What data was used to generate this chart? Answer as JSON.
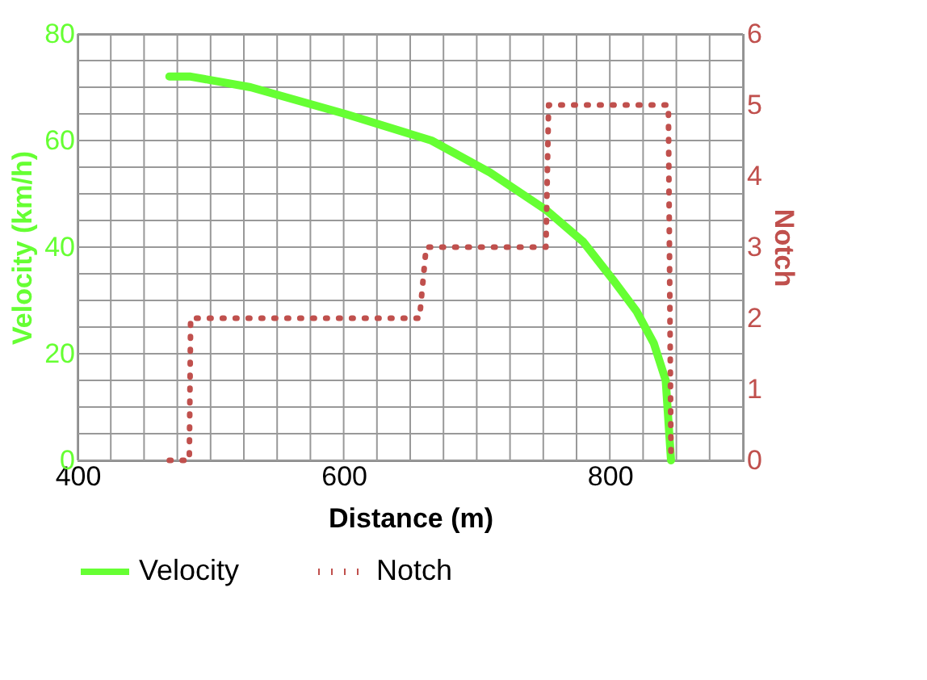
{
  "chart_data": {
    "type": "line",
    "xlabel": "Distance (m)",
    "ylabel": "Velocity (km/h)",
    "y2label": "Notch",
    "series": [
      {
        "name": "Velocity",
        "color": "#66ff33",
        "line_style": "solid",
        "x": [
          469,
          485,
          530,
          601,
          666,
          710,
          752,
          780,
          802,
          820,
          833,
          842,
          846
        ],
        "values": [
          72,
          72,
          70,
          65,
          60,
          54,
          47,
          41,
          34,
          28,
          22,
          15,
          0
        ]
      },
      {
        "name": "Notch",
        "color": "#c0504d",
        "line_style": "dotted",
        "axis": "y2",
        "x": [
          469,
          484,
          485,
          657,
          662,
          752,
          754,
          844,
          846
        ],
        "values": [
          0,
          0,
          2,
          2,
          3,
          3,
          5,
          5,
          0
        ]
      }
    ],
    "xlim": [
      400,
      900
    ],
    "xticks": [
      400,
      {
        "value": 425,
        "label": null
      },
      {
        "value": 450,
        "label": null
      },
      {
        "value": 475,
        "label": null
      },
      {
        "value": 500,
        "label": null
      },
      {
        "value": 525,
        "label": null
      },
      {
        "value": 550,
        "label": null
      },
      {
        "value": 575,
        "label": null
      },
      600,
      {
        "value": 625,
        "label": null
      },
      {
        "value": 650,
        "label": null
      },
      {
        "value": 675,
        "label": null
      },
      {
        "value": 700,
        "label": null
      },
      {
        "value": 725,
        "label": null
      },
      {
        "value": 750,
        "label": null
      },
      {
        "value": 775,
        "label": null
      },
      800,
      {
        "value": 825,
        "label": null
      },
      {
        "value": 850,
        "label": null
      },
      {
        "value": 875,
        "label": null
      },
      {
        "value": 900,
        "label": null
      }
    ],
    "ylim": [
      0,
      80
    ],
    "yticks": [
      0,
      {
        "value": 5,
        "label": null
      },
      {
        "value": 10,
        "label": null
      },
      {
        "value": 15,
        "label": null
      },
      20,
      {
        "value": 25,
        "label": null
      },
      {
        "value": 30,
        "label": null
      },
      {
        "value": 35,
        "label": null
      },
      40,
      {
        "value": 45,
        "label": null
      },
      {
        "value": 50,
        "label": null
      },
      {
        "value": 55,
        "label": null
      },
      60,
      {
        "value": 65,
        "label": null
      },
      {
        "value": 70,
        "label": null
      },
      {
        "value": 75,
        "label": null
      },
      80
    ],
    "y2lim": [
      0,
      6
    ],
    "y2ticks": [
      0,
      1,
      2,
      3,
      4,
      5,
      6
    ],
    "grid": true,
    "legend": "bottom",
    "marker": "none"
  }
}
